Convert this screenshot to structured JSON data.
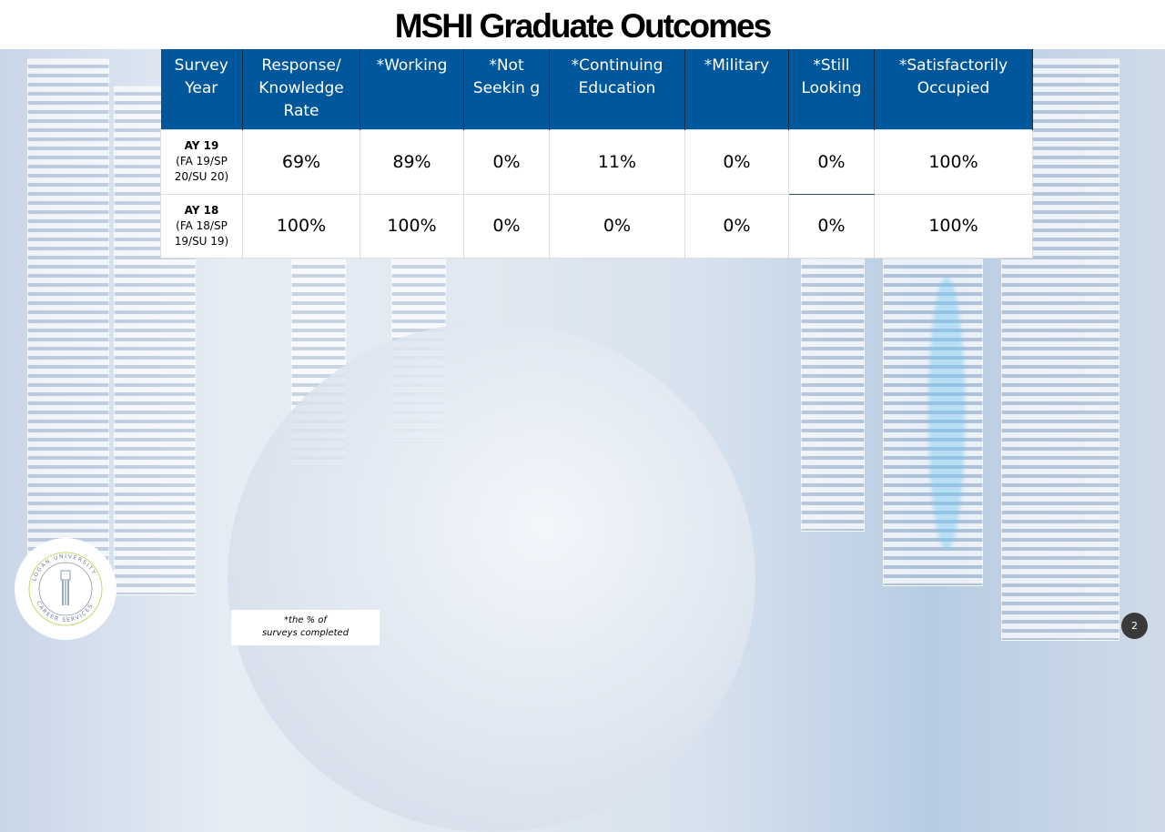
{
  "title": "MSHI Graduate Outcomes",
  "table": {
    "headers": [
      "Survey Year",
      "Response/ Knowledge Rate",
      "*Working",
      "*Not Seekin g",
      "*Continuing Education",
      "*Military",
      "*Still Looking",
      "*Satisfactorily Occupied"
    ],
    "rows": [
      {
        "year": "AY 19",
        "period": "(FA 19/SP 20/SU 20)",
        "values": [
          "69%",
          "89%",
          "0%",
          "11%",
          "0%",
          "0%",
          "100%"
        ]
      },
      {
        "year": "AY 18",
        "period": "(FA 18/SP 19/SU 19)",
        "values": [
          "100%",
          "100%",
          "0%",
          "0%",
          "0%",
          "0%",
          "100%"
        ]
      }
    ]
  },
  "footnote": {
    "line1": "*the % of",
    "line2": "surveys completed"
  },
  "logo": {
    "top": "LOGAN UNIVERSITY",
    "bottom": "CAREER SERVICES"
  },
  "page_number": "2"
}
